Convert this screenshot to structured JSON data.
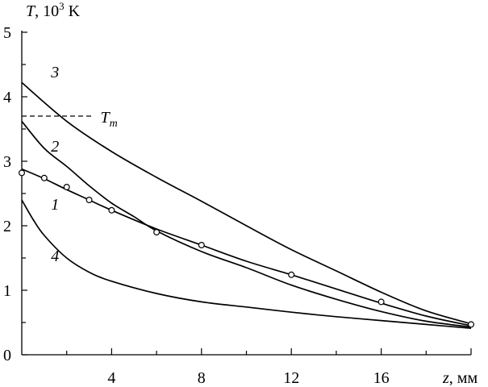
{
  "chart_data": {
    "type": "line",
    "ylabel": {
      "symbol": "T",
      "rest": ", 10",
      "exp": "3",
      "unit": " K"
    },
    "xlabel": {
      "symbol": "z",
      "rest": ", мм"
    },
    "xlim": [
      0,
      20
    ],
    "ylim": [
      0,
      5
    ],
    "xticks": [
      {
        "value": 4,
        "label": "4"
      },
      {
        "value": 8,
        "label": "8"
      },
      {
        "value": 12,
        "label": "12"
      },
      {
        "value": 16,
        "label": "16"
      }
    ],
    "yticks": [
      {
        "value": 0,
        "label": "0"
      },
      {
        "value": 1,
        "label": "1"
      },
      {
        "value": 2,
        "label": "2"
      },
      {
        "value": 3,
        "label": "3"
      },
      {
        "value": 4,
        "label": "4"
      },
      {
        "value": 5,
        "label": "5"
      }
    ],
    "series": [
      {
        "name": "3",
        "label_at": [
          1.3,
          4.3
        ],
        "x": [
          0,
          2,
          4,
          6,
          8,
          10,
          12,
          14,
          16,
          18,
          20
        ],
        "y": [
          4.22,
          3.62,
          3.15,
          2.75,
          2.38,
          2.0,
          1.63,
          1.3,
          0.97,
          0.68,
          0.48
        ]
      },
      {
        "name": "2",
        "label_at": [
          1.3,
          3.15
        ],
        "x": [
          0,
          1,
          2,
          3,
          4,
          5,
          6,
          8,
          10,
          12,
          14,
          16,
          18,
          20
        ],
        "y": [
          3.62,
          3.2,
          2.92,
          2.62,
          2.35,
          2.14,
          1.92,
          1.6,
          1.35,
          1.08,
          0.86,
          0.67,
          0.52,
          0.43
        ]
      },
      {
        "name": "1",
        "label_at": [
          1.3,
          2.25
        ],
        "x": [
          0,
          1,
          2,
          3,
          4,
          6,
          8,
          10,
          12,
          14,
          16,
          18,
          20
        ],
        "y": [
          2.88,
          2.73,
          2.56,
          2.4,
          2.24,
          1.95,
          1.7,
          1.45,
          1.24,
          1.02,
          0.8,
          0.6,
          0.45
        ]
      },
      {
        "name": "4",
        "label_at": [
          1.3,
          1.45
        ],
        "x": [
          0,
          0.5,
          1,
          2,
          3,
          4,
          6,
          8,
          10,
          12,
          14,
          16,
          18,
          20
        ],
        "y": [
          2.4,
          2.1,
          1.85,
          1.5,
          1.28,
          1.14,
          0.95,
          0.82,
          0.74,
          0.66,
          0.59,
          0.53,
          0.47,
          0.41
        ]
      }
    ],
    "points": {
      "x": [
        0,
        1,
        2,
        3,
        4,
        6,
        8,
        12,
        16,
        20
      ],
      "y": [
        2.82,
        2.74,
        2.6,
        2.4,
        2.24,
        1.9,
        1.7,
        1.24,
        0.82,
        0.47
      ]
    },
    "reference": {
      "label_symbol": "T",
      "label_sub": "m",
      "y": 3.7,
      "x_end": 3.1,
      "label_x": 3.5
    }
  }
}
